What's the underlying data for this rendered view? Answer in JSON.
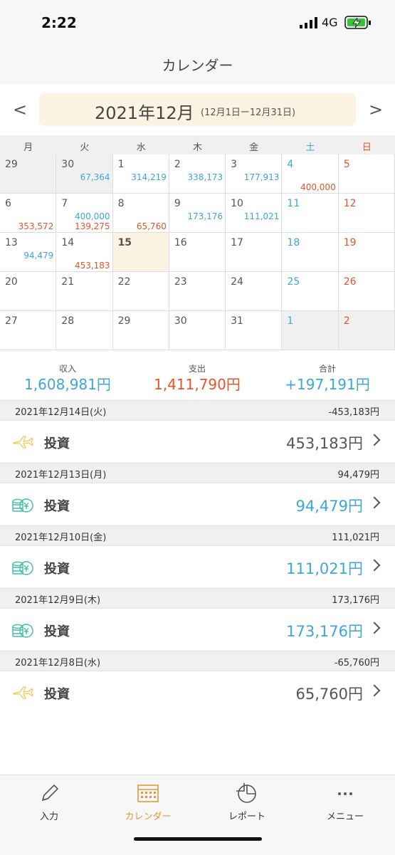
{
  "status": {
    "time": "2:22",
    "network": "4G"
  },
  "header": {
    "title": "カレンダー"
  },
  "month": {
    "prev": "<",
    "label": "2021年12月",
    "range": "(12月1日ー12月31日)",
    "next": ">"
  },
  "weekdays": [
    "月",
    "火",
    "水",
    "木",
    "金",
    "土",
    "日"
  ],
  "calendar": {
    "weeks": [
      [
        {
          "day": "29"
        },
        {
          "day": "30",
          "income": "67,364"
        },
        {
          "day": "1",
          "income": "314,219"
        },
        {
          "day": "2",
          "income": "338,173"
        },
        {
          "day": "3",
          "income": "177,913"
        },
        {
          "day": "4",
          "expense": "400,000"
        },
        {
          "day": "5"
        }
      ],
      [
        {
          "day": "6",
          "expense": "353,572"
        },
        {
          "day": "7",
          "income": "400,000",
          "expense": "139,275"
        },
        {
          "day": "8",
          "expense": "65,760"
        },
        {
          "day": "9",
          "income": "173,176"
        },
        {
          "day": "10",
          "income": "111,021"
        },
        {
          "day": "11"
        },
        {
          "day": "12"
        }
      ],
      [
        {
          "day": "13",
          "income": "94,479"
        },
        {
          "day": "14",
          "expense": "453,183"
        },
        {
          "day": "15"
        },
        {
          "day": "16"
        },
        {
          "day": "17"
        },
        {
          "day": "18"
        },
        {
          "day": "19"
        }
      ],
      [
        {
          "day": "20"
        },
        {
          "day": "21"
        },
        {
          "day": "22"
        },
        {
          "day": "23"
        },
        {
          "day": "24"
        },
        {
          "day": "25"
        },
        {
          "day": "26"
        }
      ],
      [
        {
          "day": "27"
        },
        {
          "day": "28"
        },
        {
          "day": "29"
        },
        {
          "day": "30"
        },
        {
          "day": "31"
        },
        {
          "day": "1"
        },
        {
          "day": "2"
        }
      ]
    ]
  },
  "summary": [
    {
      "label": "収入",
      "value": "1,608,981円"
    },
    {
      "label": "支出",
      "value": "1,411,790円"
    },
    {
      "label": "合計",
      "value": "+197,191円"
    }
  ],
  "transactions": [
    {
      "date": "2021年12月14日(火)",
      "total": "-453,183円",
      "category": "投資",
      "amount": "453,183円"
    },
    {
      "date": "2021年12月13日(月)",
      "total": "94,479円",
      "category": "投資",
      "amount": "94,479円"
    },
    {
      "date": "2021年12月10日(金)",
      "total": "111,021円",
      "category": "投資",
      "amount": "111,021円"
    },
    {
      "date": "2021年12月9日(木)",
      "total": "173,176円",
      "category": "投資",
      "amount": "173,176円"
    },
    {
      "date": "2021年12月8日(水)",
      "total": "-65,760円",
      "category": "投資",
      "amount": "65,760円"
    }
  ],
  "tabs": [
    "入力",
    "カレンダー",
    "レポート",
    "メニュー"
  ]
}
